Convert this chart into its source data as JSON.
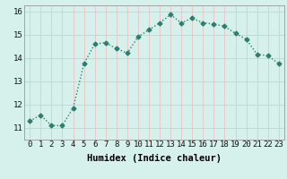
{
  "x": [
    0,
    1,
    2,
    3,
    4,
    5,
    6,
    7,
    8,
    9,
    10,
    11,
    12,
    13,
    14,
    15,
    16,
    17,
    18,
    19,
    20,
    21,
    22,
    23
  ],
  "y": [
    11.3,
    11.55,
    11.1,
    11.1,
    11.85,
    13.75,
    14.6,
    14.65,
    14.4,
    14.2,
    14.9,
    15.2,
    15.5,
    15.85,
    15.5,
    15.7,
    15.5,
    15.45,
    15.35,
    15.05,
    14.8,
    14.15,
    14.1,
    13.75
  ],
  "line_color": "#2e7d6e",
  "marker": "D",
  "marker_size": 2.5,
  "bg_color": "#d6f0eb",
  "grid_color": "#e8c8c8",
  "xlabel": "Humidex (Indice chaleur)",
  "ylim": [
    10.5,
    16.25
  ],
  "xlim": [
    -0.5,
    23.5
  ],
  "yticks": [
    11,
    12,
    13,
    14,
    15,
    16
  ],
  "xticks": [
    0,
    1,
    2,
    3,
    4,
    5,
    6,
    7,
    8,
    9,
    10,
    11,
    12,
    13,
    14,
    15,
    16,
    17,
    18,
    19,
    20,
    21,
    22,
    23
  ],
  "xlabel_fontsize": 7.5,
  "tick_fontsize": 6.5,
  "line_width": 1.0
}
